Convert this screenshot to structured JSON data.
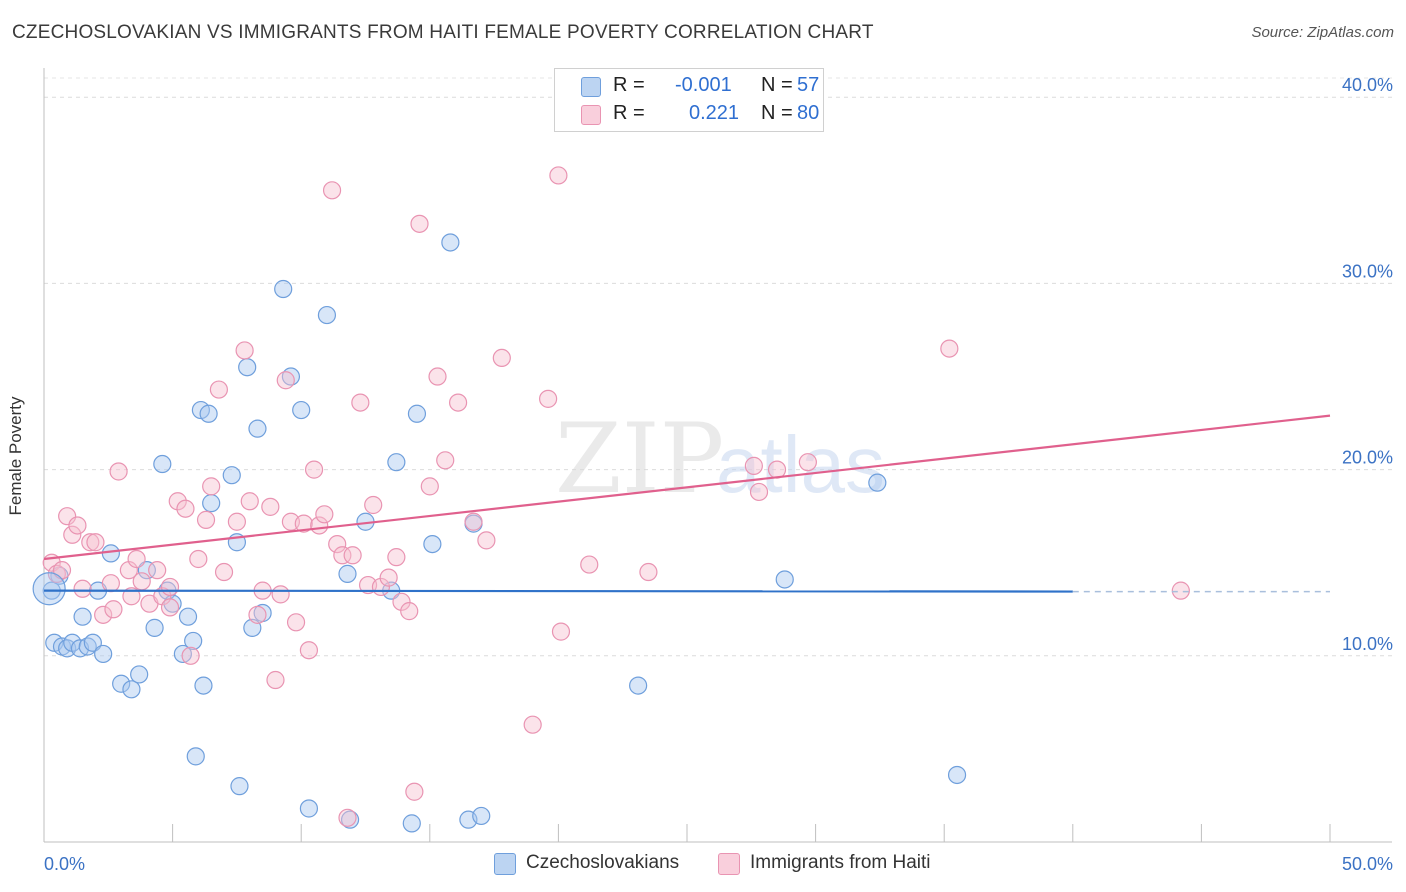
{
  "title": "CZECHOSLOVAKIAN VS IMMIGRANTS FROM HAITI FEMALE POVERTY CORRELATION CHART",
  "source": "Source: ZipAtlas.com",
  "legend": {
    "r_label": "R =",
    "n_label": "N =",
    "rows": [
      {
        "r": "-0.001",
        "n": "57"
      },
      {
        "r": "0.221",
        "n": "80"
      }
    ]
  },
  "chart_data": {
    "type": "scatter",
    "ylabel": "Female Poverty",
    "xlim": [
      0,
      50
    ],
    "ylim": [
      0,
      42
    ],
    "x_tick_labels": [
      {
        "value": 0,
        "label": "0.0%"
      },
      {
        "value": 50,
        "label": "50.0%"
      }
    ],
    "y_tick_labels": [
      {
        "value": 10,
        "label": "10.0%"
      },
      {
        "value": 20,
        "label": "20.0%"
      },
      {
        "value": 30,
        "label": "30.0%"
      },
      {
        "value": 40,
        "label": "40.0%"
      }
    ],
    "x_minor_ticks": [
      0,
      5,
      10,
      15,
      20,
      25,
      30,
      35,
      40,
      45,
      50
    ],
    "grid": true,
    "legend_position": "bottom",
    "watermark": "ZIPatlas",
    "series": [
      {
        "name": "Czechoslovakians",
        "color": "#a9c8ef",
        "stroke": "#6f9fdc",
        "trend_color": "#2f72c9",
        "trend": {
          "x0": 0,
          "y0": 13.5,
          "x1": 40,
          "y1": 13.45,
          "dash_to": 50
        },
        "points": [
          [
            0.3,
            13.5
          ],
          [
            0.4,
            10.7
          ],
          [
            0.6,
            14.3
          ],
          [
            0.7,
            10.5
          ],
          [
            0.9,
            10.4
          ],
          [
            1.1,
            10.7
          ],
          [
            1.4,
            10.4
          ],
          [
            1.5,
            12.1
          ],
          [
            1.7,
            10.5
          ],
          [
            1.9,
            10.7
          ],
          [
            2.1,
            13.5
          ],
          [
            2.3,
            10.1
          ],
          [
            2.6,
            15.5
          ],
          [
            3.0,
            8.5
          ],
          [
            3.4,
            8.2
          ],
          [
            3.7,
            9.0
          ],
          [
            4.0,
            14.6
          ],
          [
            4.3,
            11.5
          ],
          [
            4.6,
            20.3
          ],
          [
            4.8,
            13.5
          ],
          [
            5.0,
            12.8
          ],
          [
            5.4,
            10.1
          ],
          [
            5.6,
            12.1
          ],
          [
            5.8,
            10.8
          ],
          [
            5.9,
            4.6
          ],
          [
            6.1,
            23.2
          ],
          [
            6.2,
            8.4
          ],
          [
            6.4,
            23.0
          ],
          [
            6.5,
            18.2
          ],
          [
            7.3,
            19.7
          ],
          [
            7.5,
            16.1
          ],
          [
            7.6,
            3.0
          ],
          [
            7.9,
            25.5
          ],
          [
            8.1,
            11.5
          ],
          [
            8.3,
            22.2
          ],
          [
            8.5,
            12.3
          ],
          [
            9.3,
            29.7
          ],
          [
            9.6,
            25.0
          ],
          [
            10.0,
            23.2
          ],
          [
            10.3,
            1.8
          ],
          [
            11.0,
            28.3
          ],
          [
            11.8,
            14.4
          ],
          [
            11.9,
            1.2
          ],
          [
            12.5,
            17.2
          ],
          [
            13.5,
            13.5
          ],
          [
            13.7,
            20.4
          ],
          [
            14.3,
            1.0
          ],
          [
            14.5,
            23.0
          ],
          [
            15.1,
            16.0
          ],
          [
            15.8,
            32.2
          ],
          [
            16.5,
            1.2
          ],
          [
            16.7,
            17.1
          ],
          [
            17.0,
            1.4
          ],
          [
            23.1,
            8.4
          ],
          [
            28.8,
            14.1
          ],
          [
            32.4,
            19.3
          ],
          [
            35.5,
            3.6
          ]
        ]
      },
      {
        "name": "Immigrants from Haiti",
        "color": "#f7c0d1",
        "stroke": "#e994b2",
        "trend_color": "#e0608d",
        "trend": {
          "x0": 0,
          "y0": 15.2,
          "x1": 50,
          "y1": 22.9
        },
        "points": [
          [
            0.3,
            15.0
          ],
          [
            0.5,
            14.4
          ],
          [
            0.7,
            14.6
          ],
          [
            0.9,
            17.5
          ],
          [
            1.1,
            16.5
          ],
          [
            1.3,
            17.0
          ],
          [
            1.5,
            13.6
          ],
          [
            1.8,
            16.1
          ],
          [
            2.0,
            16.1
          ],
          [
            2.3,
            12.2
          ],
          [
            2.6,
            13.9
          ],
          [
            2.7,
            12.5
          ],
          [
            2.9,
            19.9
          ],
          [
            3.3,
            14.6
          ],
          [
            3.6,
            15.2
          ],
          [
            3.8,
            14.0
          ],
          [
            4.1,
            12.8
          ],
          [
            4.4,
            14.6
          ],
          [
            4.6,
            13.2
          ],
          [
            4.9,
            13.7
          ],
          [
            5.2,
            18.3
          ],
          [
            5.5,
            17.9
          ],
          [
            5.7,
            10.0
          ],
          [
            6.0,
            15.2
          ],
          [
            6.3,
            17.3
          ],
          [
            6.5,
            19.1
          ],
          [
            6.8,
            24.3
          ],
          [
            7.0,
            14.5
          ],
          [
            7.5,
            17.2
          ],
          [
            7.8,
            26.4
          ],
          [
            8.0,
            18.3
          ],
          [
            8.3,
            12.2
          ],
          [
            8.5,
            13.5
          ],
          [
            8.8,
            18.0
          ],
          [
            9.0,
            8.7
          ],
          [
            9.2,
            13.3
          ],
          [
            9.4,
            24.8
          ],
          [
            9.6,
            17.2
          ],
          [
            9.8,
            11.8
          ],
          [
            10.1,
            17.1
          ],
          [
            10.3,
            10.3
          ],
          [
            10.5,
            20.0
          ],
          [
            10.7,
            17.0
          ],
          [
            10.9,
            17.6
          ],
          [
            11.2,
            35.0
          ],
          [
            11.4,
            16.0
          ],
          [
            11.6,
            15.4
          ],
          [
            11.8,
            1.3
          ],
          [
            12.0,
            15.4
          ],
          [
            12.3,
            23.6
          ],
          [
            12.6,
            13.8
          ],
          [
            12.8,
            18.1
          ],
          [
            13.1,
            13.7
          ],
          [
            13.4,
            14.2
          ],
          [
            13.7,
            15.3
          ],
          [
            13.9,
            12.9
          ],
          [
            14.2,
            12.4
          ],
          [
            14.4,
            2.7
          ],
          [
            14.6,
            33.2
          ],
          [
            15.0,
            19.1
          ],
          [
            15.3,
            25.0
          ],
          [
            15.6,
            20.5
          ],
          [
            16.1,
            23.6
          ],
          [
            16.7,
            17.2
          ],
          [
            17.2,
            16.2
          ],
          [
            17.8,
            26.0
          ],
          [
            19.0,
            6.3
          ],
          [
            19.6,
            23.8
          ],
          [
            20.0,
            35.8
          ],
          [
            20.1,
            11.3
          ],
          [
            21.2,
            14.9
          ],
          [
            23.5,
            14.5
          ],
          [
            27.6,
            20.2
          ],
          [
            27.8,
            18.8
          ],
          [
            28.5,
            20.0
          ],
          [
            29.7,
            20.4
          ],
          [
            35.2,
            26.5
          ],
          [
            44.2,
            13.5
          ],
          [
            4.9,
            12.6
          ],
          [
            3.4,
            13.2
          ]
        ]
      }
    ]
  }
}
